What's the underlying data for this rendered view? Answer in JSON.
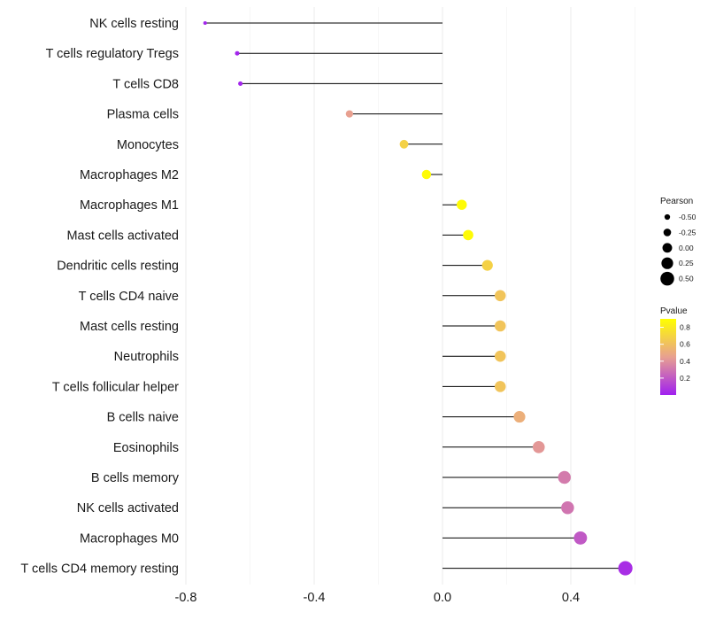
{
  "chart_data": {
    "type": "lollipop",
    "categories": [
      "NK cells resting",
      "T cells regulatory  Tregs",
      "T cells CD8",
      "Plasma cells",
      "Monocytes",
      "Macrophages M2",
      "Macrophages M1",
      "Mast cells activated",
      "Dendritic cells resting",
      "T cells CD4 naive",
      "Mast cells resting",
      "Neutrophils",
      "T cells follicular helper",
      "B cells naive",
      "Eosinophils",
      "B cells memory",
      "NK cells activated",
      "Macrophages M0",
      "T cells CD4 memory resting"
    ],
    "pearson": [
      -0.74,
      -0.64,
      -0.63,
      -0.29,
      -0.12,
      -0.05,
      0.06,
      0.08,
      0.14,
      0.18,
      0.18,
      0.18,
      0.18,
      0.24,
      0.3,
      0.38,
      0.39,
      0.43,
      0.57
    ],
    "pvalue": [
      0.02,
      0.02,
      0.02,
      0.45,
      0.68,
      0.88,
      0.88,
      0.88,
      0.68,
      0.62,
      0.62,
      0.62,
      0.62,
      0.52,
      0.42,
      0.32,
      0.3,
      0.2,
      0.05
    ],
    "xlim": [
      -0.8,
      0.6
    ],
    "x_ticks": [
      -0.8,
      -0.4,
      0.0,
      0.4
    ],
    "x_tick_labels": [
      "-0.8",
      "-0.4",
      "0.0",
      "0.4"
    ],
    "xlabel": "",
    "ylabel": "",
    "grid": true,
    "legend_position": "right",
    "size_legend": {
      "title": "Pearson",
      "values": [
        -0.5,
        -0.25,
        0.0,
        0.25,
        0.5
      ],
      "labels": [
        "-0.50",
        "-0.25",
        "0.00",
        "0.25",
        "0.50"
      ]
    },
    "color_legend": {
      "title": "Pvalue",
      "ticks": [
        0.8,
        0.6,
        0.4,
        0.2
      ],
      "labels": [
        "0.8",
        "0.6",
        "0.4",
        "0.2"
      ],
      "range": [
        0.0,
        0.9
      ],
      "low_color": "#a020f0",
      "mid_color": "#e8a090",
      "high_color": "#ffff00"
    }
  }
}
